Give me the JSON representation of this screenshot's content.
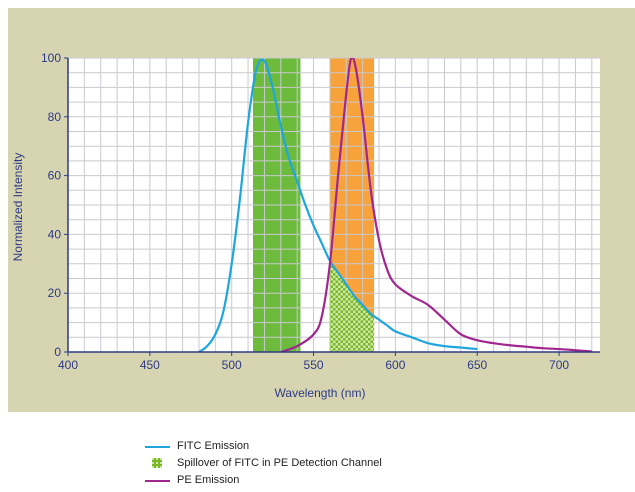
{
  "chart_data": {
    "type": "line",
    "xlabel": "Wavelength (nm)",
    "ylabel": "Normalized Intensity",
    "xlim": [
      400,
      725
    ],
    "ylim": [
      0,
      100
    ],
    "x_ticks": [
      400,
      450,
      500,
      550,
      600,
      650,
      700
    ],
    "y_ticks": [
      0,
      20,
      40,
      60,
      80,
      100
    ],
    "grid": true,
    "background_color": "#d7d5b1",
    "bands": [
      {
        "name": "FITC detection band",
        "x_range": [
          513,
          542
        ],
        "color": "#6cbb3c"
      },
      {
        "name": "PE detection band",
        "x_range": [
          560,
          587
        ],
        "color": "#f7a23a"
      }
    ],
    "series": [
      {
        "name": "FITC Emission",
        "color": "#1ea6dd",
        "x": [
          480,
          485,
          490,
          495,
          500,
          505,
          510,
          515,
          520,
          525,
          530,
          535,
          540,
          545,
          550,
          555,
          560,
          565,
          570,
          575,
          580,
          585,
          590,
          595,
          600,
          610,
          620,
          630,
          640,
          650
        ],
        "y": [
          0,
          2,
          6,
          14,
          30,
          52,
          78,
          96,
          99,
          90,
          77,
          66,
          58,
          50,
          43,
          37,
          31,
          27,
          23,
          19,
          16,
          13,
          11,
          9,
          7,
          5,
          3,
          2,
          1.5,
          1
        ]
      },
      {
        "name": "PE Emission",
        "color": "#a0278f",
        "x": [
          530,
          540,
          550,
          555,
          560,
          565,
          570,
          573,
          576,
          580,
          585,
          590,
          595,
          600,
          610,
          620,
          630,
          640,
          650,
          660,
          670,
          680,
          690,
          700,
          710,
          720
        ],
        "y": [
          0,
          2,
          6,
          12,
          30,
          60,
          88,
          100,
          96,
          80,
          55,
          38,
          28,
          23,
          19,
          16,
          11,
          6,
          4,
          3,
          2.3,
          1.8,
          1.3,
          1,
          0.6,
          0.2
        ]
      }
    ],
    "spillover": {
      "name": "Spillover of FITC in PE Detection Channel",
      "x_range": [
        560,
        587
      ],
      "color": "#78b828"
    }
  },
  "legend": {
    "fitc_label": "FITC Emission",
    "spill_label": "Spillover of FITC in PE Detection Channel",
    "pe_label": "PE Emission"
  }
}
